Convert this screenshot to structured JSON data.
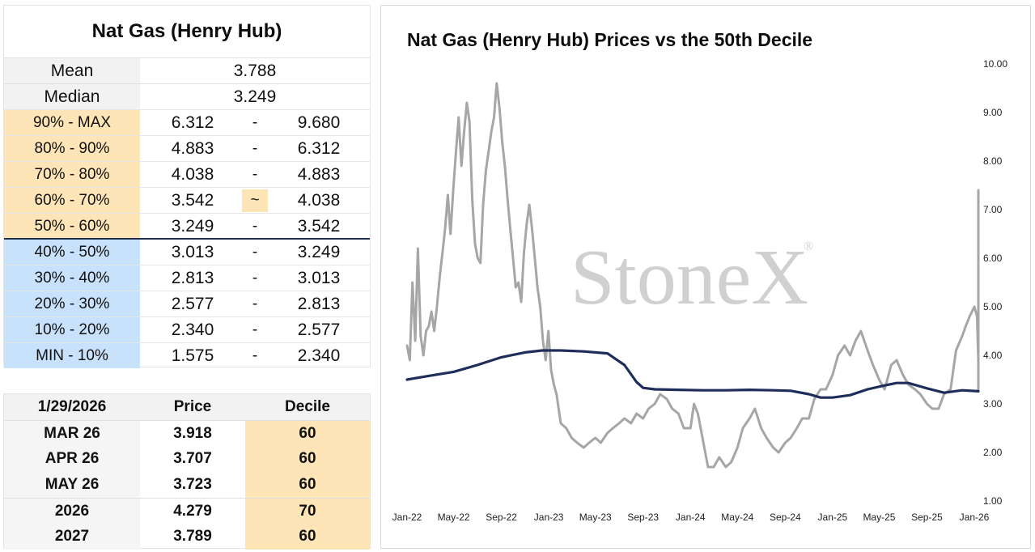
{
  "decile_table": {
    "title": "Nat Gas (Henry Hub)",
    "stats": [
      {
        "label": "Mean",
        "value": "3.788"
      },
      {
        "label": "Median",
        "value": "3.249"
      }
    ],
    "bands": [
      {
        "label": "90% - MAX",
        "low": "6.312",
        "sep": "-",
        "high": "9.680",
        "group": "upper"
      },
      {
        "label": "80% - 90%",
        "low": "4.883",
        "sep": "-",
        "high": "6.312",
        "group": "upper"
      },
      {
        "label": "70% - 80%",
        "low": "4.038",
        "sep": "-",
        "high": "4.883",
        "group": "upper"
      },
      {
        "label": "60% - 70%",
        "low": "3.542",
        "sep": "~",
        "high": "4.038",
        "group": "upper",
        "current": true
      },
      {
        "label": "50% - 60%",
        "low": "3.249",
        "sep": "-",
        "high": "3.542",
        "group": "upper"
      },
      {
        "label": "40% - 50%",
        "low": "3.013",
        "sep": "-",
        "high": "3.249",
        "group": "lower"
      },
      {
        "label": "30% - 40%",
        "low": "2.813",
        "sep": "-",
        "high": "3.013",
        "group": "lower"
      },
      {
        "label": "20% - 30%",
        "low": "2.577",
        "sep": "-",
        "high": "2.813",
        "group": "lower"
      },
      {
        "label": "10% - 20%",
        "low": "2.340",
        "sep": "-",
        "high": "2.577",
        "group": "lower"
      },
      {
        "label": "MIN - 10%",
        "low": "1.575",
        "sep": "-",
        "high": "2.340",
        "group": "lower"
      }
    ],
    "colors": {
      "upper": "#fde5b8",
      "lower": "#c9e2fb",
      "divider": "#1f2d4e"
    }
  },
  "contract_table": {
    "headers": [
      "1/29/2026",
      "Price",
      "Decile"
    ],
    "rows": [
      {
        "contract": "MAR 26",
        "price": "3.918",
        "decile": "60"
      },
      {
        "contract": "APR 26",
        "price": "3.707",
        "decile": "60"
      },
      {
        "contract": "MAY 26",
        "price": "3.723",
        "decile": "60"
      },
      {
        "contract": "2026",
        "price": "4.279",
        "decile": "70"
      },
      {
        "contract": "2027",
        "price": "3.789",
        "decile": "60"
      }
    ]
  },
  "watermark": {
    "text": "StoneX",
    "reg": "®"
  },
  "chart_data": {
    "type": "line",
    "title": "Nat Gas (Henry Hub) Prices vs the 50th Decile",
    "xlabel": "",
    "ylabel": "",
    "ylim": [
      1.0,
      10.0
    ],
    "yticks": [
      "1.00",
      "2.00",
      "3.00",
      "4.00",
      "5.00",
      "6.00",
      "7.00",
      "8.00",
      "9.00",
      "10.00"
    ],
    "y_axis_side": "right",
    "xticks": [
      "Jan-22",
      "May-22",
      "Sep-22",
      "Jan-23",
      "May-23",
      "Sep-23",
      "Jan-24",
      "May-24",
      "Sep-24",
      "Jan-25",
      "May-25",
      "Sep-25",
      "Jan-26"
    ],
    "grid": false,
    "legend": "none",
    "series": [
      {
        "color": "#a6a6a6",
        "x": [
          "2022-01-01",
          "2022-01-08",
          "2022-01-15",
          "2022-01-22",
          "2022-01-29",
          "2022-02-05",
          "2022-02-12",
          "2022-02-19",
          "2022-02-26",
          "2022-03-05",
          "2022-03-12",
          "2022-03-19",
          "2022-03-26",
          "2022-04-02",
          "2022-04-09",
          "2022-04-16",
          "2022-04-23",
          "2022-04-30",
          "2022-05-07",
          "2022-05-14",
          "2022-05-21",
          "2022-05-28",
          "2022-06-04",
          "2022-06-11",
          "2022-06-18",
          "2022-06-25",
          "2022-07-02",
          "2022-07-09",
          "2022-07-16",
          "2022-07-23",
          "2022-07-30",
          "2022-08-06",
          "2022-08-13",
          "2022-08-20",
          "2022-08-27",
          "2022-09-03",
          "2022-09-10",
          "2022-09-17",
          "2022-09-24",
          "2022-10-01",
          "2022-10-08",
          "2022-10-15",
          "2022-10-22",
          "2022-10-29",
          "2022-11-05",
          "2022-11-12",
          "2022-11-19",
          "2022-11-26",
          "2022-12-03",
          "2022-12-10",
          "2022-12-17",
          "2022-12-24",
          "2022-12-31",
          "2023-01-07",
          "2023-01-14",
          "2023-01-21",
          "2023-02-01",
          "2023-02-15",
          "2023-03-01",
          "2023-03-15",
          "2023-04-01",
          "2023-04-15",
          "2023-05-01",
          "2023-05-15",
          "2023-06-01",
          "2023-06-15",
          "2023-07-01",
          "2023-07-15",
          "2023-08-01",
          "2023-08-15",
          "2023-09-01",
          "2023-09-15",
          "2023-10-01",
          "2023-10-15",
          "2023-11-01",
          "2023-11-15",
          "2023-12-01",
          "2023-12-15",
          "2024-01-01",
          "2024-01-10",
          "2024-01-20",
          "2024-02-01",
          "2024-02-15",
          "2024-03-01",
          "2024-03-15",
          "2024-04-01",
          "2024-04-15",
          "2024-05-01",
          "2024-05-15",
          "2024-06-01",
          "2024-06-15",
          "2024-07-01",
          "2024-07-15",
          "2024-08-01",
          "2024-08-15",
          "2024-09-01",
          "2024-09-15",
          "2024-10-01",
          "2024-10-15",
          "2024-11-01",
          "2024-11-15",
          "2024-12-01",
          "2024-12-15",
          "2025-01-01",
          "2025-01-15",
          "2025-02-01",
          "2025-02-15",
          "2025-03-01",
          "2025-03-15",
          "2025-04-01",
          "2025-04-15",
          "2025-05-01",
          "2025-05-15",
          "2025-06-01",
          "2025-06-15",
          "2025-07-01",
          "2025-07-15",
          "2025-08-01",
          "2025-08-15",
          "2025-09-01",
          "2025-09-15",
          "2025-10-01",
          "2025-10-15",
          "2025-11-01",
          "2025-11-15",
          "2025-12-01",
          "2025-12-10",
          "2025-12-20",
          "2026-01-01",
          "2026-01-08",
          "2026-01-15",
          "2026-01-20",
          "2026-01-24",
          "2026-01-27",
          "2026-01-29"
        ],
        "values": [
          4.2,
          3.9,
          5.5,
          4.3,
          6.2,
          4.4,
          4.0,
          4.5,
          4.6,
          4.9,
          4.5,
          5.0,
          5.6,
          6.1,
          6.6,
          7.3,
          6.5,
          7.4,
          8.2,
          8.9,
          7.9,
          8.6,
          9.2,
          8.8,
          7.2,
          6.3,
          6.0,
          5.9,
          7.1,
          7.8,
          8.2,
          8.6,
          8.9,
          9.6,
          9.1,
          8.4,
          7.9,
          7.2,
          6.6,
          6.0,
          5.4,
          5.5,
          5.1,
          6.1,
          6.7,
          7.1,
          6.6,
          6.0,
          5.4,
          5.0,
          4.3,
          3.9,
          4.5,
          3.7,
          3.4,
          3.2,
          2.6,
          2.5,
          2.3,
          2.2,
          2.1,
          2.2,
          2.3,
          2.2,
          2.4,
          2.5,
          2.6,
          2.7,
          2.6,
          2.8,
          2.7,
          2.9,
          3.0,
          3.2,
          3.1,
          2.9,
          2.8,
          2.5,
          2.5,
          3.0,
          2.8,
          2.3,
          1.7,
          1.7,
          1.9,
          1.7,
          1.8,
          2.1,
          2.5,
          2.7,
          2.9,
          2.5,
          2.3,
          2.1,
          2.0,
          2.2,
          2.3,
          2.5,
          2.7,
          2.7,
          3.1,
          3.3,
          3.3,
          3.6,
          4.0,
          4.2,
          4.0,
          4.3,
          4.5,
          4.1,
          3.8,
          3.5,
          3.3,
          3.8,
          3.9,
          3.6,
          3.4,
          3.3,
          3.2,
          3.0,
          2.9,
          2.9,
          3.2,
          3.3,
          4.1,
          4.4,
          4.6,
          4.8,
          5.0,
          4.8,
          3.9,
          3.3,
          3.7,
          7.4,
          3.9
        ]
      },
      {
        "color": "#1f2d5a",
        "x": [
          "2022-01-01",
          "2022-03-01",
          "2022-05-01",
          "2022-07-01",
          "2022-09-01",
          "2022-11-01",
          "2022-12-15",
          "2023-02-01",
          "2023-04-01",
          "2023-06-01",
          "2023-07-15",
          "2023-08-15",
          "2023-09-01",
          "2023-10-01",
          "2023-12-01",
          "2024-02-01",
          "2024-04-01",
          "2024-06-01",
          "2024-08-01",
          "2024-09-15",
          "2024-11-01",
          "2024-12-01",
          "2025-01-01",
          "2025-02-15",
          "2025-04-01",
          "2025-05-15",
          "2025-06-15",
          "2025-07-15",
          "2025-09-01",
          "2025-10-15",
          "2025-12-01",
          "2026-01-29"
        ],
        "values": [
          3.5,
          3.58,
          3.66,
          3.8,
          3.96,
          4.06,
          4.1,
          4.1,
          4.08,
          4.04,
          3.8,
          3.45,
          3.33,
          3.3,
          3.29,
          3.28,
          3.28,
          3.29,
          3.28,
          3.27,
          3.2,
          3.13,
          3.13,
          3.18,
          3.3,
          3.38,
          3.43,
          3.43,
          3.32,
          3.23,
          3.28,
          3.26
        ]
      }
    ]
  }
}
